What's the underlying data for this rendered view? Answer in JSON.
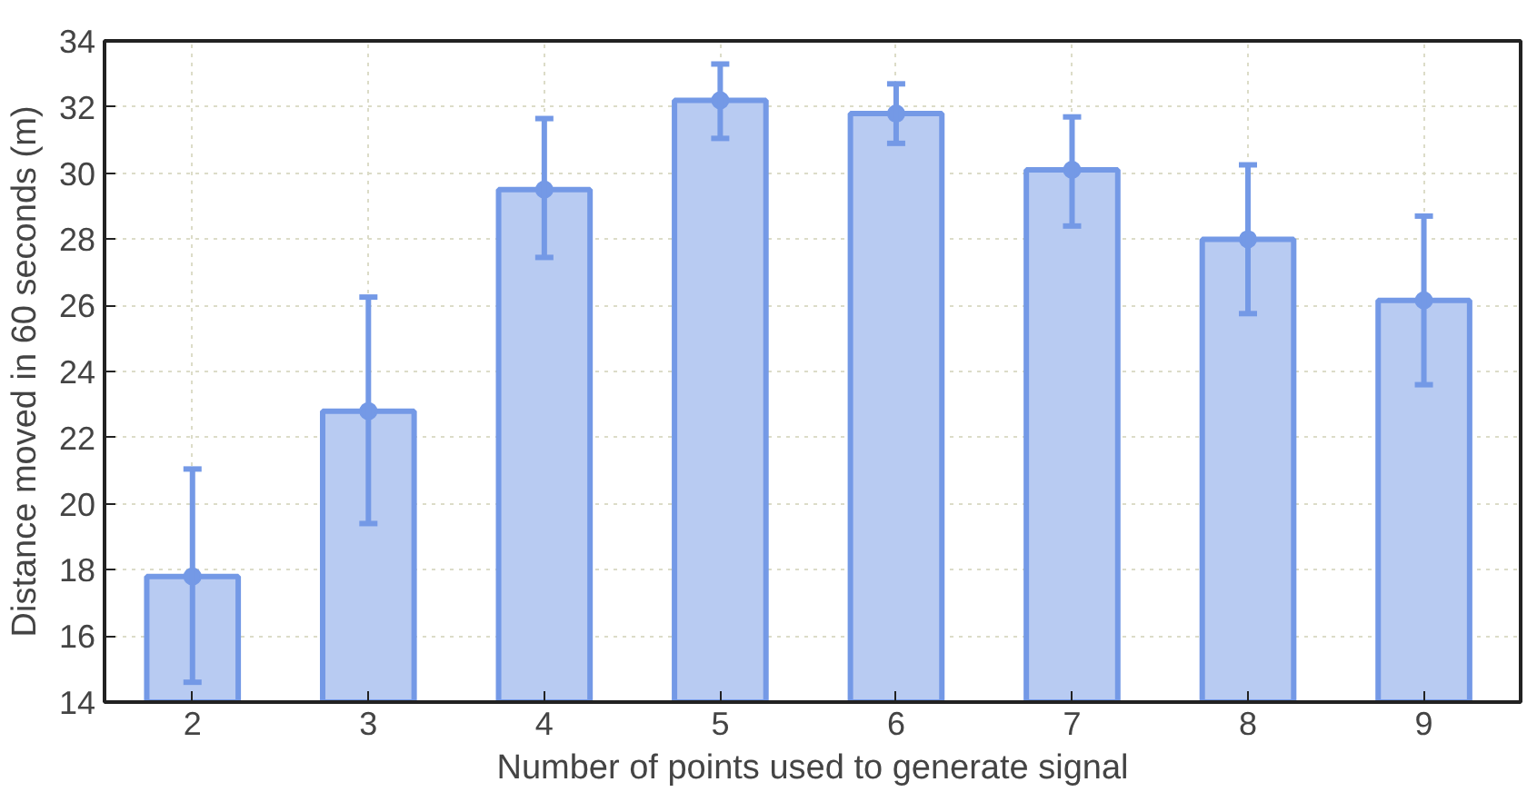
{
  "chart_data": {
    "type": "bar",
    "xlabel": "Number of points used to generate signal",
    "ylabel": "Distance moved in 60 seconds (m)",
    "categories": [
      "2",
      "3",
      "4",
      "5",
      "6",
      "7",
      "8",
      "9"
    ],
    "series": [
      {
        "color": "#b8cbf2",
        "values": [
          17.8,
          22.8,
          29.5,
          32.2,
          31.8,
          30.1,
          28.0,
          26.15
        ],
        "errors": [
          [
            14.6,
            21.05
          ],
          [
            19.4,
            26.25
          ],
          [
            27.45,
            31.65
          ],
          [
            31.05,
            33.3
          ],
          [
            30.9,
            32.7
          ],
          [
            28.4,
            31.7
          ],
          [
            25.75,
            30.25
          ],
          [
            23.6,
            28.7
          ]
        ]
      },
      {
        "type": "scatter",
        "color": "#7499e6",
        "marker": "circle",
        "x": [
          "2",
          "3",
          "4",
          "5",
          "6",
          "7",
          "8",
          "9"
        ],
        "values": [
          17.8,
          22.8,
          29.5,
          32.2,
          31.8,
          30.1,
          28.0,
          26.15
        ]
      }
    ],
    "ylim": [
      14,
      34
    ],
    "yticks": [
      14,
      16,
      18,
      20,
      22,
      24,
      26,
      28,
      30,
      32,
      34
    ],
    "grid": true
  }
}
